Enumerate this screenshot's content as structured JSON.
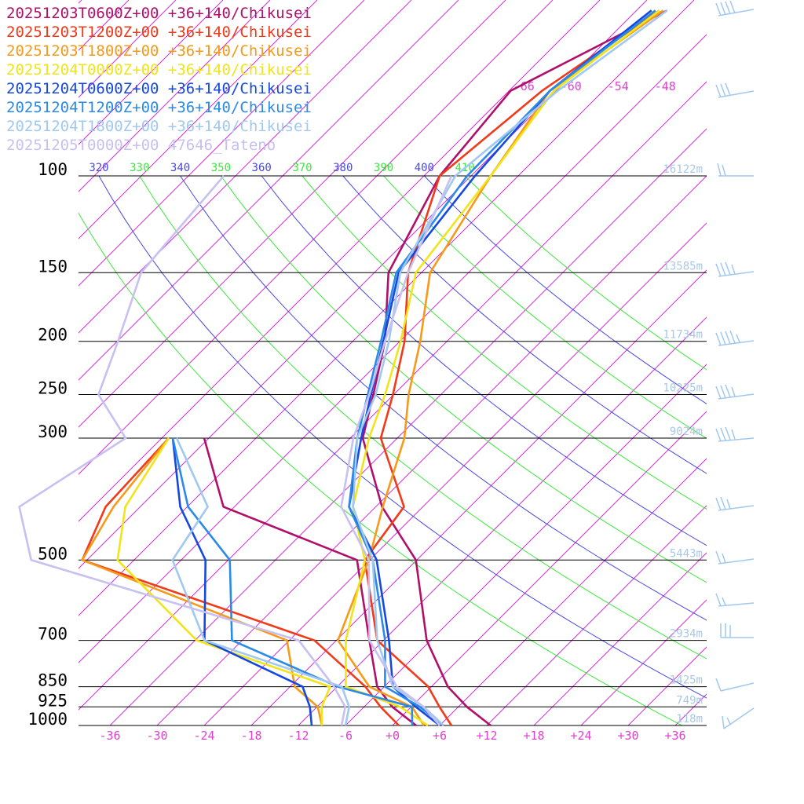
{
  "chart_data": {
    "type": "skewt",
    "legend": [
      {
        "name": "20251203T0600Z+00 +36+140/Chikusei",
        "color": "#b0106a"
      },
      {
        "name": "20251203T1200Z+00 +36+140/Chikusei",
        "color": "#f03a1a"
      },
      {
        "name": "20251203T1800Z+00 +36+140/Chikusei",
        "color": "#f59a1a"
      },
      {
        "name": "20251204T0000Z+00 +36+140/Chikusei",
        "color": "#f0e41a"
      },
      {
        "name": "20251204T0600Z+00 +36+140/Chikusei",
        "color": "#1448e0"
      },
      {
        "name": "20251204T1200Z+00 +36+140/Chikusei",
        "color": "#2a8ae8"
      },
      {
        "name": "20251204T1800Z+00 +36+140/Chikusei",
        "color": "#a0c8f0"
      },
      {
        "name": "20251205T0000Z+00 47646_Tateno",
        "color": "#c8c0f0"
      }
    ],
    "levels": [
      1000,
      925,
      850,
      700,
      500,
      400,
      300,
      250,
      200,
      150,
      100,
      70,
      50
    ],
    "series": [
      {
        "color": "#b0106a",
        "temperature": [
          12.5,
          7.1,
          2.1,
          -6.5,
          -18.1,
          -29.2,
          -40.4,
          -44.6,
          -49.9,
          -58.2,
          -64,
          -65.8,
          -56.1
        ],
        "dewpoint": [
          3,
          -2.4,
          -6.9,
          -13.8,
          -25.6,
          -49.4,
          -60.6,
          null,
          null,
          null,
          null,
          null,
          null
        ]
      },
      {
        "color": "#f03a1a",
        "temperature": [
          7.5,
          3.6,
          -0.4,
          -12.8,
          -24.6,
          -26.4,
          -38.1,
          -42.1,
          -47.4,
          -55.7,
          -64,
          -61.8,
          -57.1
        ],
        "dewpoint": [
          0.8,
          -3.9,
          -8.4,
          -20.8,
          -60.6,
          -64.4,
          -65.1,
          null,
          null,
          null,
          null,
          null,
          null
        ]
      },
      {
        "color": "#f59a1a",
        "temperature": [
          4,
          0.1,
          -7.9,
          -17.8,
          -24.1,
          -29.1,
          -35.1,
          -40.1,
          -45.4,
          -52.9,
          -57.5,
          -60.8,
          -56.6
        ],
        "dewpoint": [
          -9,
          -11.9,
          -17.4,
          -24.3,
          -60.6,
          -63.4,
          -65.1,
          null,
          null,
          null,
          null,
          null,
          null
        ]
      },
      {
        "color": "#f0e41a",
        "temperature": [
          4.5,
          -1.4,
          -10.9,
          -16.8,
          -24.6,
          -32.9,
          -39.6,
          -43.1,
          -47.9,
          -54.7,
          -57.5,
          -60.3,
          -57.1
        ],
        "dewpoint": [
          -9,
          -11.4,
          -12.9,
          -35.8,
          -56.1,
          -61.9,
          -65.1,
          null,
          null,
          null,
          null,
          null,
          null
        ]
      },
      {
        "color": "#1448e0",
        "temperature": [
          6,
          0.6,
          -4.9,
          -11.3,
          -23.1,
          -33.4,
          -40.6,
          -44.9,
          -50.1,
          -56.9,
          -59.5,
          -60.8,
          -58.1
        ],
        "dewpoint": [
          -10.3,
          -12.9,
          -16.4,
          -34.8,
          -44.9,
          -54.9,
          -64.6,
          null,
          null,
          null,
          null,
          null,
          null
        ]
      },
      {
        "color": "#2a8ae8",
        "temperature": [
          6.5,
          1.1,
          -5.9,
          -11.8,
          -23.6,
          -33.4,
          -41.1,
          -45.3,
          -50.4,
          -57.2,
          -60.5,
          -60.8,
          -57.6
        ],
        "dewpoint": [
          2.5,
          0.1,
          -11.9,
          -31.3,
          -41.8,
          -53.9,
          -64.6,
          null,
          null,
          null,
          null,
          null,
          null
        ]
      },
      {
        "color": "#a0c8f0",
        "temperature": [
          6.5,
          1.6,
          -4.9,
          -12.8,
          -23.6,
          -32.9,
          -41.1,
          -44.3,
          -49.4,
          -56.7,
          -62,
          -59.8,
          -56.1
        ],
        "dewpoint": [
          -6,
          -7.9,
          -11.4,
          -34.8,
          -49.1,
          -51.4,
          -64.1,
          null,
          null,
          null,
          null,
          null,
          null
        ]
      },
      {
        "color": "#c8c0f0",
        "temperature": [
          6,
          1.6,
          -4.4,
          -13.8,
          -24.1,
          -34.4,
          -41.6,
          -45.1,
          -49.9,
          -55.7,
          -62.5,
          null,
          null
        ],
        "dewpoint": [
          -6.5,
          -8.4,
          -12.4,
          -22.8,
          -67.1,
          -75.4,
          -70.6,
          -79.6,
          -83.9,
          -89.7,
          -91.5,
          null,
          null
        ]
      }
    ],
    "yticks": [
      100,
      150,
      200,
      250,
      300,
      500,
      700,
      850,
      925,
      1000
    ],
    "heights": [
      "16122m",
      "13585m",
      "11734m",
      "10225m",
      "9024m",
      "5443m",
      "2934m",
      "1425m",
      "749m",
      "118m"
    ],
    "height_levels": [
      100,
      150,
      200,
      250,
      300,
      500,
      700,
      850,
      925,
      1000
    ],
    "xticks": [
      -36,
      -30,
      -24,
      -18,
      -12,
      -6,
      {
        "value": 0,
        "label": "+0"
      },
      {
        "value": 6,
        "label": "+6"
      },
      {
        "value": 12,
        "label": "+12"
      },
      {
        "value": 18,
        "label": "+18"
      },
      {
        "value": 24,
        "label": "+24"
      },
      {
        "value": 30,
        "label": "+30"
      },
      {
        "value": 36,
        "label": "+36"
      }
    ],
    "top_xticks": [
      -66,
      -60,
      -54,
      -48
    ],
    "isotherms": [
      -156,
      -150,
      -144,
      -138,
      -132,
      -126,
      -120,
      -114,
      -108,
      -102,
      -96,
      -90,
      -84,
      -78,
      -72,
      -66,
      -60,
      -54,
      -48,
      -42,
      -36,
      -30,
      -24,
      -18,
      -12,
      -6,
      0,
      6,
      12,
      18,
      24,
      30,
      36
    ],
    "thetas": [
      310,
      320,
      330,
      340,
      350,
      360,
      370,
      380,
      390,
      400,
      410
    ],
    "theta_colors": [
      "#3ce83c",
      "#4848e0"
    ],
    "isotherm_color": "#d030d0"
  }
}
